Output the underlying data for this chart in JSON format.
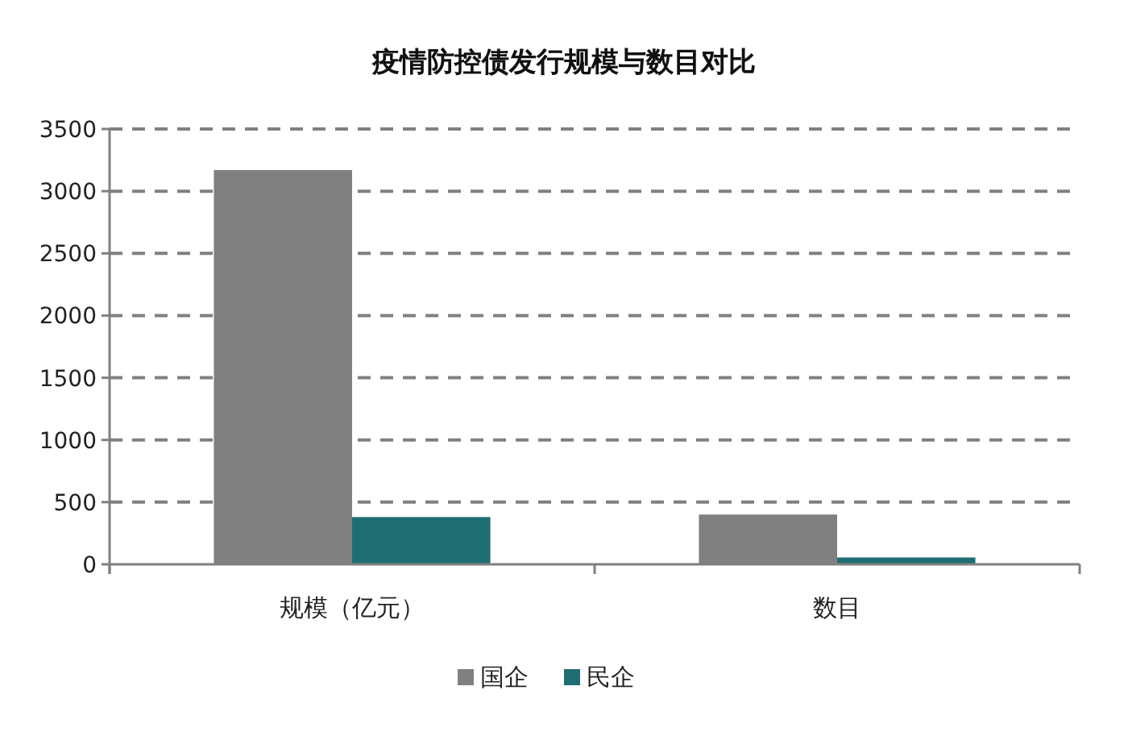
{
  "chart_data": {
    "type": "bar",
    "title": "疫情防控债发行规模与数目对比",
    "categories": [
      "规模（亿元）",
      "数目"
    ],
    "series": [
      {
        "name": "国企",
        "color": "#808080",
        "values": [
          3170,
          400
        ]
      },
      {
        "name": "民企",
        "color": "#1f6e74",
        "values": [
          380,
          55
        ]
      }
    ],
    "ylim": [
      0,
      3500
    ],
    "yticks": [
      0,
      500,
      1000,
      1500,
      2000,
      2500,
      3000,
      3500
    ],
    "grid": "y",
    "legend": "bottom"
  }
}
